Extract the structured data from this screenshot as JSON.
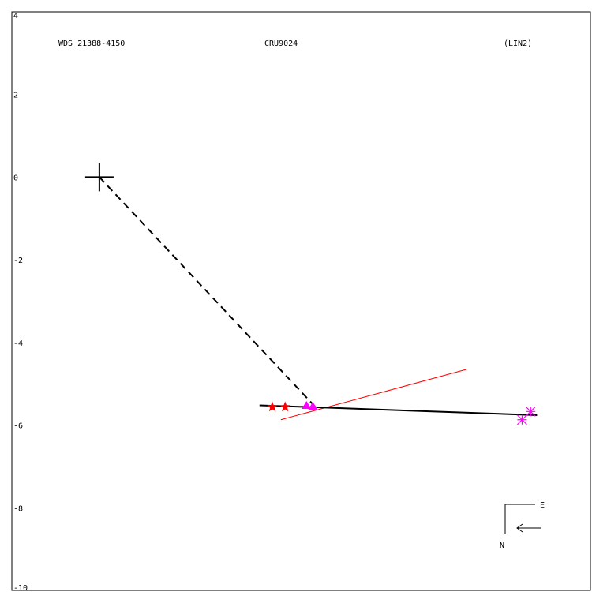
{
  "chart_data": {
    "type": "scatter",
    "header": {
      "left": "WDS 21388-4150",
      "center": "CRU9024",
      "right": "(LIN2)"
    },
    "ylim": [
      -10,
      4
    ],
    "yticks": [
      4,
      2,
      0,
      -2,
      -4,
      -6,
      -8,
      -10
    ],
    "xlim": [
      -2.05,
      11.5
    ],
    "origin_marker": {
      "x": 0,
      "y": 0
    },
    "dashed_line": [
      {
        "x": 0,
        "y": 0
      },
      {
        "x": 5.05,
        "y": -5.55
      }
    ],
    "fit_line_black": [
      {
        "x": 3.75,
        "y": -5.52
      },
      {
        "x": 10.25,
        "y": -5.76
      }
    ],
    "fit_line_red": [
      {
        "x": 4.25,
        "y": -5.87
      },
      {
        "x": 8.6,
        "y": -4.65
      }
    ],
    "series": [
      {
        "marker": "star",
        "color": "#ff0000",
        "points": [
          {
            "x": 4.05,
            "y": -5.56
          },
          {
            "x": 4.35,
            "y": -5.56
          }
        ]
      },
      {
        "marker": "triangle",
        "color": "#ff00ff",
        "points": [
          {
            "x": 4.85,
            "y": -5.53
          },
          {
            "x": 5.0,
            "y": -5.55
          }
        ]
      },
      {
        "marker": "asterisk",
        "color": "#ff00ff",
        "points": [
          {
            "x": 9.9,
            "y": -5.87
          },
          {
            "x": 10.1,
            "y": -5.67
          }
        ]
      }
    ],
    "compass": {
      "east": "E",
      "north": "N"
    },
    "grid": false
  }
}
